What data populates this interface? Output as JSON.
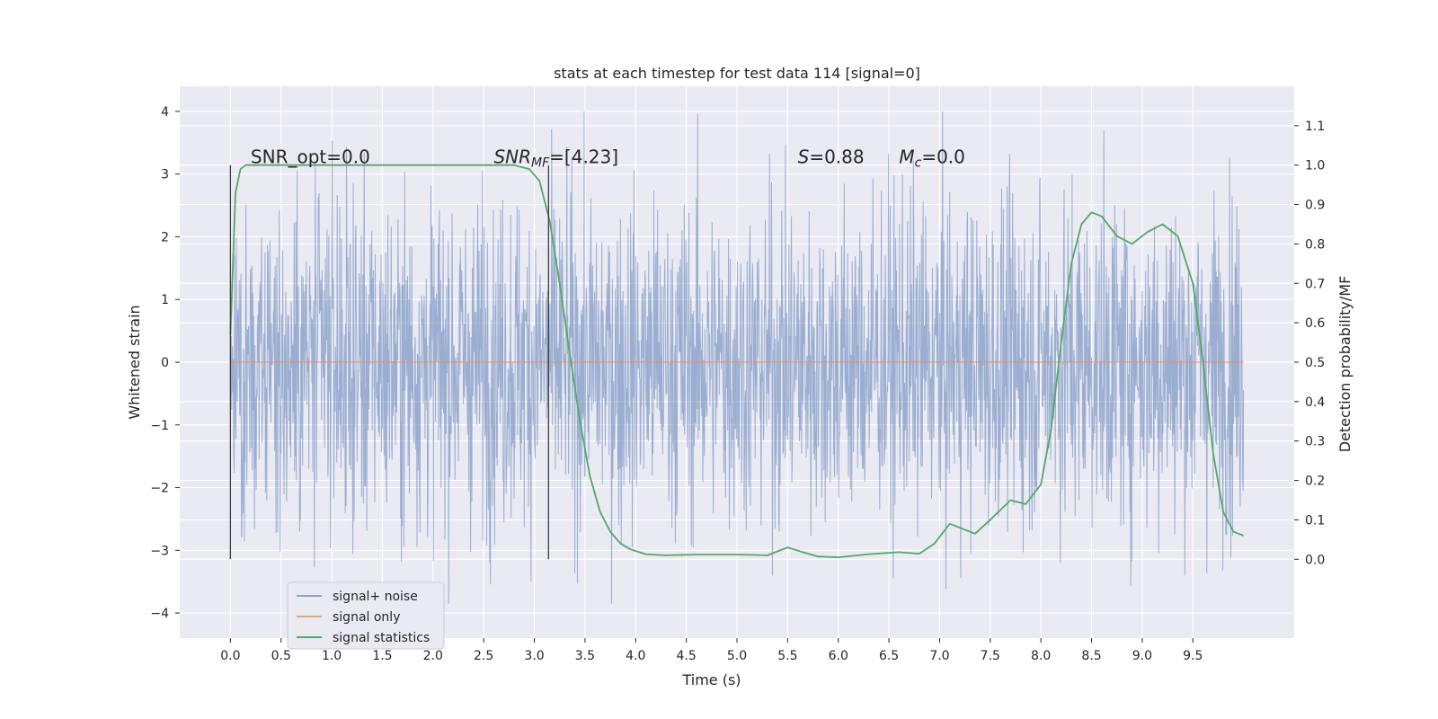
{
  "chart_data": {
    "type": "line",
    "title": "stats at each timestep for test data 114 [signal=0]",
    "xlabel": "Time (s)",
    "ylabel": "Whitened strain",
    "y2label": "Detection probability/MF",
    "xlim": [
      -0.5,
      10.5
    ],
    "ylim": [
      -4.4,
      4.4
    ],
    "y2lim": [
      -0.2,
      1.2
    ],
    "xticks": [
      0.0,
      0.5,
      1.0,
      1.5,
      2.0,
      2.5,
      3.0,
      3.5,
      4.0,
      4.5,
      5.0,
      5.5,
      6.0,
      6.5,
      7.0,
      7.5,
      8.0,
      8.5,
      9.0,
      9.5
    ],
    "xtick_labels": [
      "0.0",
      "0.5",
      "1.0",
      "1.5",
      "2.0",
      "2.5",
      "3.0",
      "3.5",
      "4.0",
      "4.5",
      "5.0",
      "5.5",
      "6.0",
      "6.5",
      "7.0",
      "7.5",
      "8.0",
      "8.5",
      "9.0",
      "9.5"
    ],
    "yticks": [
      4,
      3,
      2,
      1,
      0,
      -1,
      -2,
      -3,
      -4
    ],
    "ytick_labels": [
      "4",
      "3",
      "2",
      "1",
      "0",
      "−1",
      "−2",
      "−3",
      "−4"
    ],
    "y2ticks": [
      1.1,
      1.0,
      0.9,
      0.8,
      0.7,
      0.6,
      0.5,
      0.4,
      0.3,
      0.2,
      0.1,
      0.0
    ],
    "y2tick_labels": [
      "1.1",
      "1.0",
      "0.9",
      "0.8",
      "0.7",
      "0.6",
      "0.5",
      "0.4",
      "0.3",
      "0.2",
      "0.1",
      "0.0"
    ],
    "grid": true,
    "legend_position": "lower-left",
    "annotations": [
      {
        "text": "SNR_opt=0.0",
        "x": 0.2,
        "y2": 1.0
      },
      {
        "text": "SNR_MF=[4.23]",
        "x": 2.6,
        "y2": 1.0
      },
      {
        "text": "S=0.88",
        "x": 5.6,
        "y2": 1.0
      },
      {
        "text": "M_c=0.0",
        "x": 6.6,
        "y2": 1.0
      }
    ],
    "vertical_markers": [
      {
        "x": 0.0,
        "y2_range": [
          0.0,
          1.0
        ]
      },
      {
        "x": 3.14,
        "y2_range": [
          0.0,
          1.0
        ]
      }
    ],
    "series": [
      {
        "name": "signal+ noise",
        "axis": "left",
        "color": "#4c72b0",
        "opacity": 0.5,
        "x_range": [
          0.0,
          10.0
        ],
        "typical_amplitude": 1.3,
        "max": 4.0,
        "min": -3.85
      },
      {
        "name": "signal only",
        "axis": "left",
        "color": "#dd8452",
        "opacity": 0.6,
        "x": [
          0.0,
          10.0
        ],
        "y": [
          0.0,
          0.0
        ]
      },
      {
        "name": "signal statistics",
        "axis": "right",
        "color": "#55a868",
        "x": [
          0.0,
          0.05,
          0.1,
          0.15,
          0.25,
          0.5,
          1.0,
          2.0,
          2.5,
          2.8,
          2.95,
          3.05,
          3.15,
          3.25,
          3.35,
          3.45,
          3.55,
          3.65,
          3.75,
          3.85,
          3.95,
          4.1,
          4.3,
          4.6,
          5.0,
          5.3,
          5.5,
          5.65,
          5.8,
          6.0,
          6.3,
          6.6,
          6.8,
          6.95,
          7.1,
          7.2,
          7.35,
          7.5,
          7.7,
          7.85,
          8.0,
          8.1,
          8.2,
          8.3,
          8.4,
          8.5,
          8.6,
          8.75,
          8.9,
          9.05,
          9.2,
          9.35,
          9.5,
          9.6,
          9.7,
          9.8,
          9.9,
          10.0
        ],
        "y": [
          0.57,
          0.93,
          0.99,
          1.0,
          1.0,
          1.0,
          1.0,
          1.0,
          1.0,
          1.0,
          0.99,
          0.96,
          0.86,
          0.7,
          0.52,
          0.35,
          0.21,
          0.12,
          0.07,
          0.04,
          0.025,
          0.013,
          0.01,
          0.012,
          0.012,
          0.01,
          0.03,
          0.018,
          0.007,
          0.005,
          0.013,
          0.018,
          0.014,
          0.04,
          0.09,
          0.08,
          0.065,
          0.1,
          0.15,
          0.14,
          0.19,
          0.33,
          0.55,
          0.75,
          0.85,
          0.88,
          0.87,
          0.82,
          0.8,
          0.83,
          0.85,
          0.82,
          0.7,
          0.5,
          0.27,
          0.12,
          0.07,
          0.06
        ]
      }
    ]
  }
}
